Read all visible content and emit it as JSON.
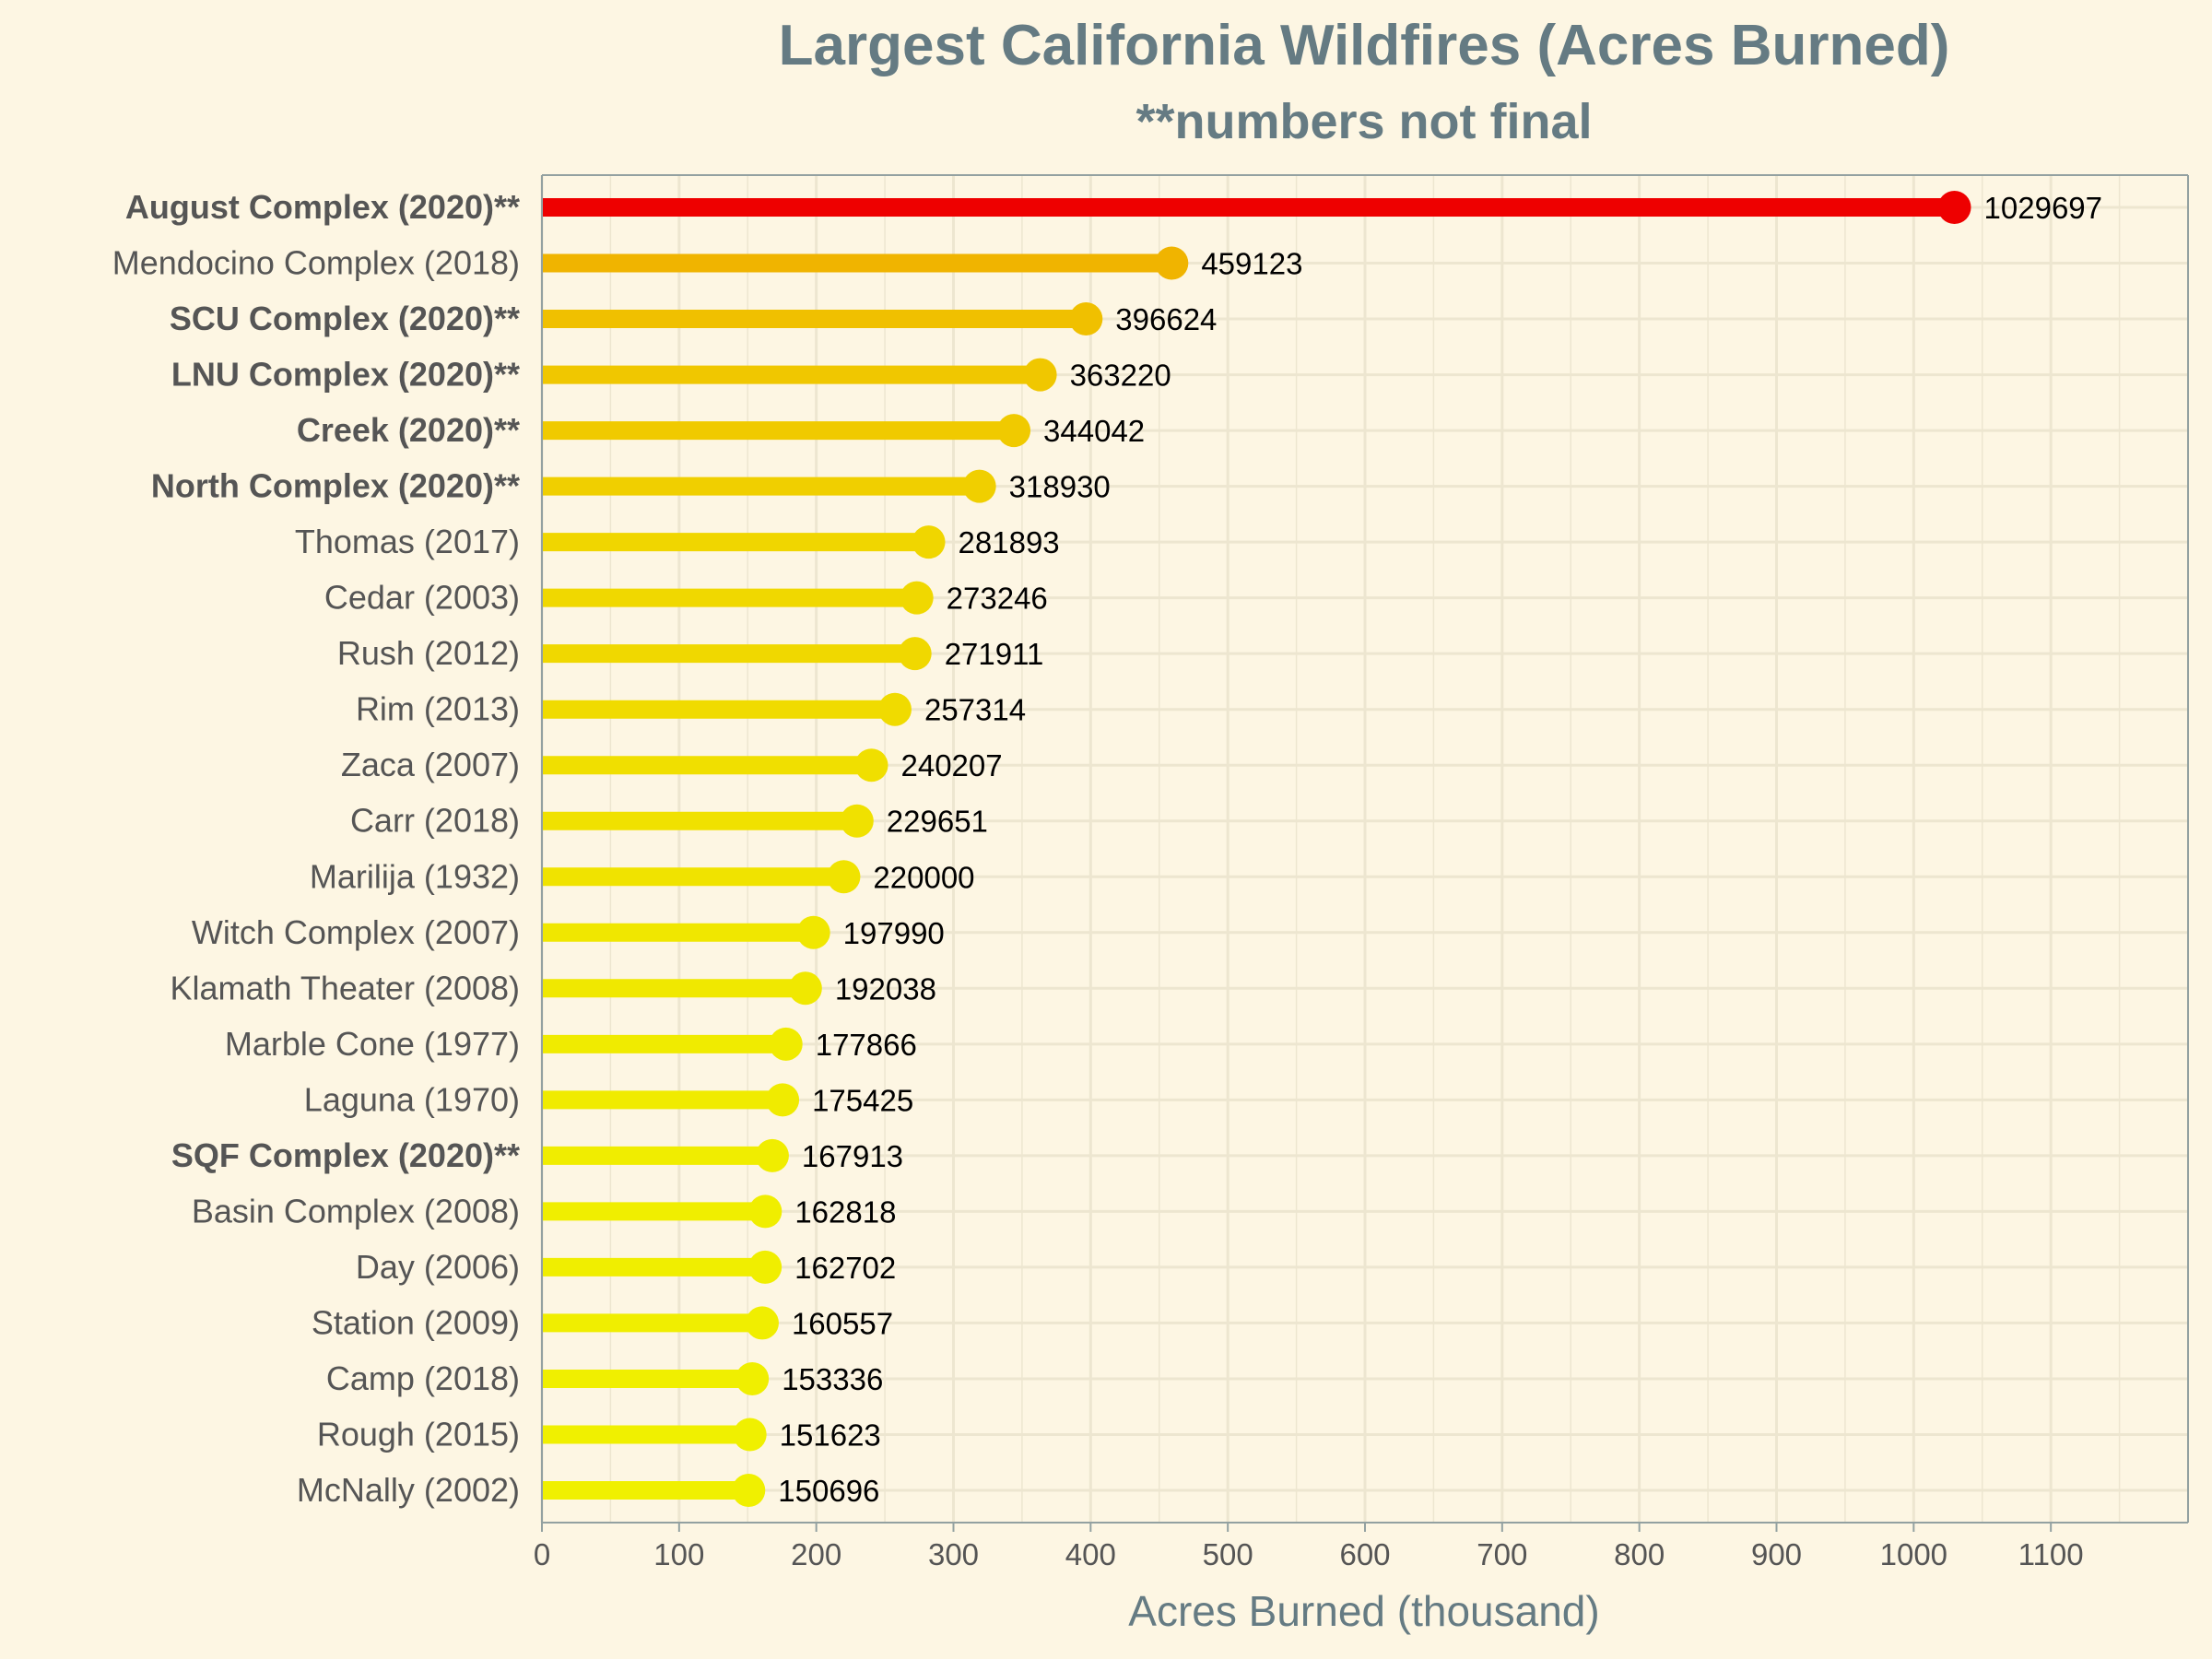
{
  "chart_data": {
    "type": "lollipop",
    "title": "Largest California Wildfires (Acres Burned)",
    "subtitle": "**numbers not final",
    "xlabel": "Acres Burned (thousand)",
    "ylabel": "",
    "xlim": [
      0,
      1200
    ],
    "xticks": [
      0,
      100,
      200,
      300,
      400,
      500,
      600,
      700,
      800,
      900,
      1000,
      1100
    ],
    "grid": true,
    "colors": {
      "background": "#fdf6e3",
      "grid": "#ede6d0",
      "axis": "#93a1a1",
      "max_color": "#ee0000",
      "gradient_high": "#f0b400",
      "gradient_low": "#f0f000"
    },
    "series": [
      {
        "label": "August Complex (2020)**",
        "value": 1029697,
        "bold": true
      },
      {
        "label": "Mendocino Complex (2018)",
        "value": 459123,
        "bold": false
      },
      {
        "label": "SCU Complex (2020)**",
        "value": 396624,
        "bold": true
      },
      {
        "label": "LNU Complex (2020)**",
        "value": 363220,
        "bold": true
      },
      {
        "label": "Creek (2020)**",
        "value": 344042,
        "bold": true
      },
      {
        "label": "North Complex (2020)**",
        "value": 318930,
        "bold": true
      },
      {
        "label": "Thomas (2017)",
        "value": 281893,
        "bold": false
      },
      {
        "label": "Cedar (2003)",
        "value": 273246,
        "bold": false
      },
      {
        "label": "Rush (2012)",
        "value": 271911,
        "bold": false
      },
      {
        "label": "Rim (2013)",
        "value": 257314,
        "bold": false
      },
      {
        "label": "Zaca (2007)",
        "value": 240207,
        "bold": false
      },
      {
        "label": "Carr (2018)",
        "value": 229651,
        "bold": false
      },
      {
        "label": "Marilija (1932)",
        "value": 220000,
        "bold": false
      },
      {
        "label": "Witch Complex (2007)",
        "value": 197990,
        "bold": false
      },
      {
        "label": "Klamath Theater (2008)",
        "value": 192038,
        "bold": false
      },
      {
        "label": "Marble Cone (1977)",
        "value": 177866,
        "bold": false
      },
      {
        "label": "Laguna (1970)",
        "value": 175425,
        "bold": false
      },
      {
        "label": "SQF Complex (2020)**",
        "value": 167913,
        "bold": true
      },
      {
        "label": "Basin Complex (2008)",
        "value": 162818,
        "bold": false
      },
      {
        "label": "Day (2006)",
        "value": 162702,
        "bold": false
      },
      {
        "label": "Station (2009)",
        "value": 160557,
        "bold": false
      },
      {
        "label": "Camp (2018)",
        "value": 153336,
        "bold": false
      },
      {
        "label": "Rough (2015)",
        "value": 151623,
        "bold": false
      },
      {
        "label": "McNally (2002)",
        "value": 150696,
        "bold": false
      }
    ]
  }
}
